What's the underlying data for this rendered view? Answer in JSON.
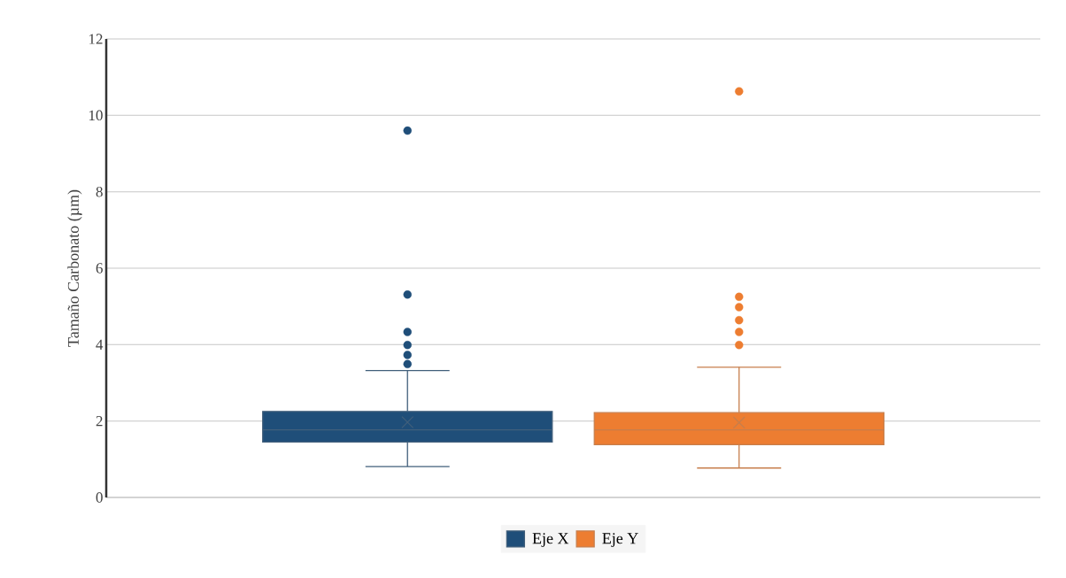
{
  "chart_data": {
    "type": "box",
    "ylabel": "Tamaño Carbonato (µm)",
    "categories": [
      null
    ],
    "series": [
      {
        "name": "Eje X",
        "color": "#1f4e79",
        "boxes": [
          {
            "low": 0.81,
            "q1": 1.45,
            "median": 1.77,
            "q3": 2.25,
            "high": 3.32,
            "mean": 1.97,
            "outliers": [
              3.49,
              3.73,
              3.99,
              4.33,
              5.31,
              9.6
            ]
          }
        ]
      },
      {
        "name": "Eje Y",
        "color": "#ed7d31",
        "boxes": [
          {
            "low": 0.77,
            "q1": 1.38,
            "median": 1.77,
            "q3": 2.22,
            "high": 3.41,
            "mean": 1.96,
            "outliers": [
              3.99,
              4.33,
              4.64,
              4.98,
              5.25,
              10.63
            ]
          }
        ]
      }
    ],
    "ylim": [
      0,
      12
    ],
    "yticks": [
      0,
      2,
      4,
      6,
      8,
      10,
      12
    ],
    "grid": "y",
    "legend": "bottom"
  }
}
